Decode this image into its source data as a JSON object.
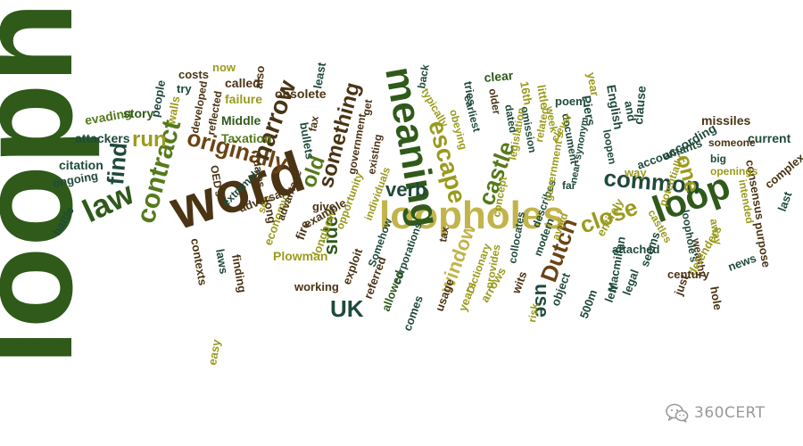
{
  "word_cloud": {
    "palette": {
      "dark_green": "#2f5a1a",
      "green": "#557a1c",
      "olive": "#9a9b1c",
      "yellow_green": "#b6b425",
      "brown": "#6b4414",
      "dark_brown": "#4a3414",
      "teal": "#1f4a3a",
      "light_olive": "#c2b44a"
    },
    "words": [
      "loophole",
      "word",
      "loopholes",
      "meaning",
      "loop",
      "law",
      "contract",
      "originally",
      "narrow",
      "escape",
      "common",
      "castle",
      "something",
      "close",
      "window",
      "verb",
      "Dutch",
      "find",
      "UK",
      "old",
      "side",
      "use",
      "one",
      "run",
      "Taxation",
      "citation",
      "ongoing",
      "battle",
      "attackers",
      "evading",
      "story",
      "people",
      "walls",
      "try",
      "costs",
      "now",
      "called",
      "failure",
      "developed",
      "reflected",
      "also",
      "obsolete",
      "least",
      "back",
      "tries",
      "clear",
      "16th",
      "little",
      "poem",
      "year",
      "Piers",
      "English",
      "and",
      "clause",
      "missiles",
      "current",
      "according",
      "someone",
      "consensus",
      "complex",
      "last",
      "intended",
      "purpose",
      "news",
      "hole",
      "wealthy",
      "castles",
      "loophole's",
      "away",
      "defenders",
      "accountants",
      "potentially",
      "openings",
      "big",
      "century",
      "just",
      "legal",
      "500m",
      "left",
      "object",
      "wits",
      "risk",
      "arrows",
      "years",
      "usage",
      "comes",
      "allowed",
      "referred",
      "exploit",
      "working",
      "Plowman",
      "longbow",
      "fire",
      "economy",
      "contexts",
      "laws",
      "finding",
      "easy",
      "see",
      "extremely",
      "adversary",
      "advantage",
      "long",
      "dates",
      "OED's",
      "Middle",
      "bullets",
      "fax",
      "government",
      "existing",
      "get",
      "typically",
      "earliest",
      "older",
      "dated",
      "omission",
      "obeying",
      "legislation",
      "related",
      "week",
      "document",
      "clever",
      "loopen",
      "near-synonym",
      "way",
      "far",
      "concept",
      "describes",
      "government's",
      "tax",
      "avoid",
      "modern",
      "collocates",
      "provides",
      "Dictionary",
      "Macmillan",
      "seems",
      "attached",
      "entirely",
      "Somehow",
      "corporations",
      "opportunity",
      "give",
      "example",
      "individuals"
    ]
  },
  "watermark": {
    "icon": "wechat-icon",
    "text": "360CERT",
    "color": "#9a9a9a"
  }
}
